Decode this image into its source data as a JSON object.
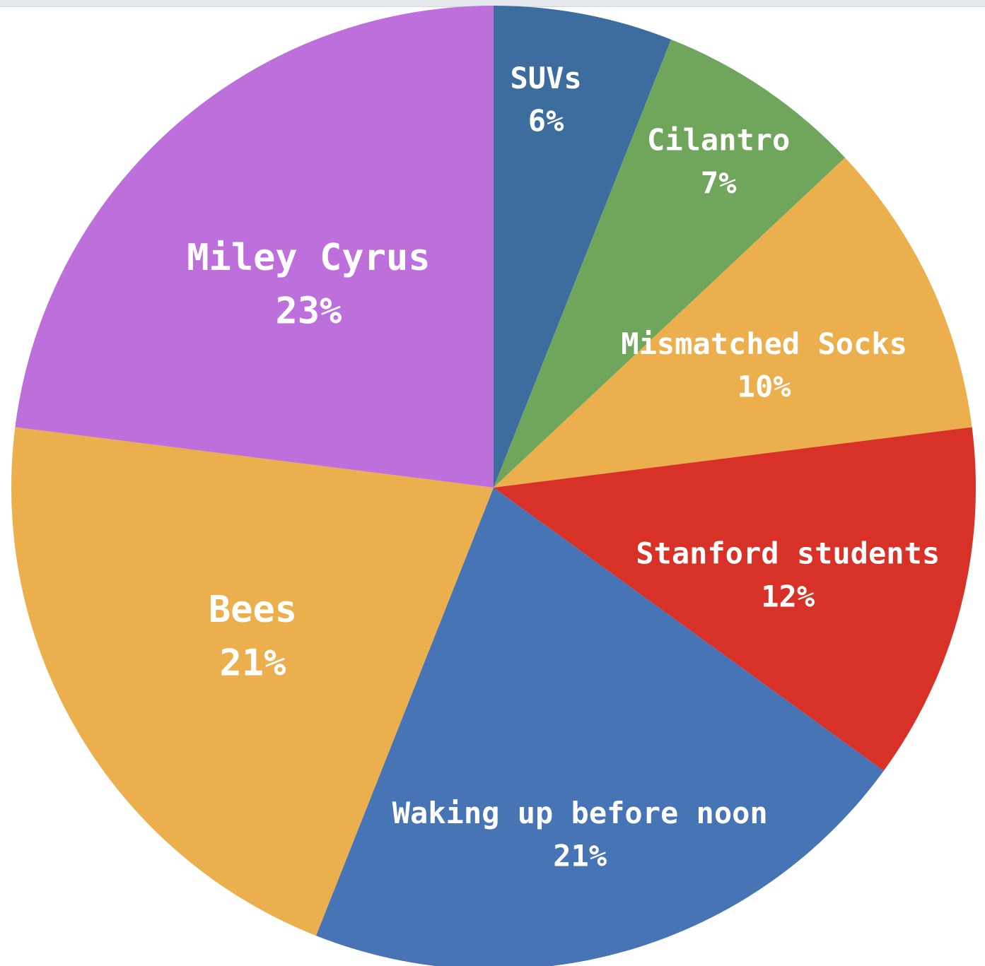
{
  "chart_data": {
    "type": "pie",
    "title": "",
    "slices": [
      {
        "label": "SUVs",
        "value": 6,
        "display": "6%",
        "color": "#3d6d9e"
      },
      {
        "label": "Cilantro",
        "value": 7,
        "display": "7%",
        "color": "#70a65b"
      },
      {
        "label": "Mismatched Socks",
        "value": 10,
        "display": "10%",
        "color": "#ecaf4d"
      },
      {
        "label": "Stanford students",
        "value": 12,
        "display": "12%",
        "color": "#d83127"
      },
      {
        "label": "Waking up before noon",
        "value": 21,
        "display": "21%",
        "color": "#4774b5"
      },
      {
        "label": "Bees",
        "value": 21,
        "display": "21%",
        "color": "#ecaf4d"
      },
      {
        "label": "Miley Cyrus",
        "value": 23,
        "display": "23%",
        "color": "#bd6fdc"
      }
    ],
    "start_angle": "12 o'clock",
    "direction": "clockwise",
    "legend": "none",
    "labels": "on-slice"
  }
}
